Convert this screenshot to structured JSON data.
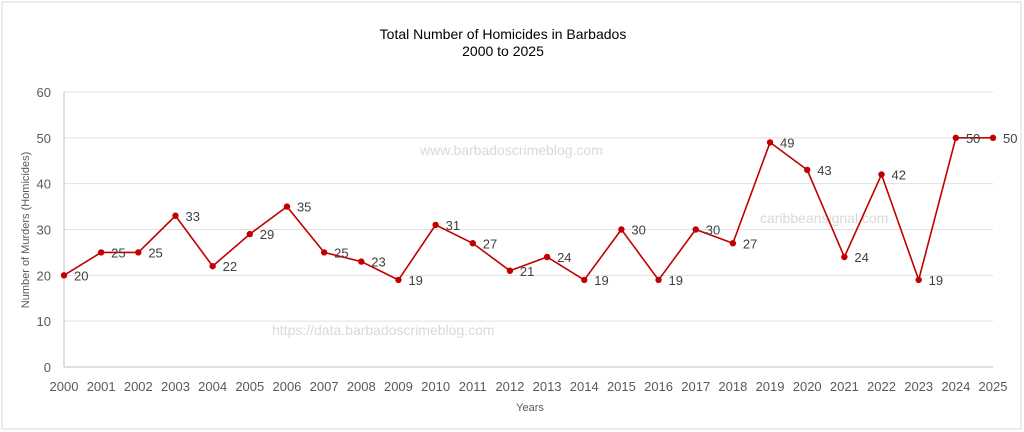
{
  "chart_data": {
    "type": "line",
    "title": "Total Number of Homicides in Barbados",
    "subtitle": "2000 to 2025",
    "xlabel": "Years",
    "ylabel": "Number of Murders (Homicides)",
    "ylim": [
      0,
      60
    ],
    "yticks": [
      0,
      10,
      20,
      30,
      40,
      50,
      60
    ],
    "grid": true,
    "legend": "none",
    "x": [
      "2000",
      "2001",
      "2002",
      "2003",
      "2004",
      "2005",
      "2006",
      "2007",
      "2008",
      "2009",
      "2010",
      "2011",
      "2012",
      "2013",
      "2014",
      "2015",
      "2016",
      "2017",
      "2018",
      "2019",
      "2020",
      "2021",
      "2022",
      "2023",
      "2024",
      "2025"
    ],
    "series": [
      {
        "name": "Homicides",
        "color": "#c00000",
        "values": [
          20,
          25,
          25,
          33,
          22,
          29,
          35,
          25,
          23,
          19,
          31,
          27,
          21,
          24,
          19,
          30,
          19,
          30,
          27,
          49,
          43,
          24,
          42,
          19,
          50,
          50
        ]
      }
    ]
  },
  "watermarks": [
    "www.barbadoscrimeblog.com",
    "caribbeansignal.com",
    "https://data.barbadoscrimeblog.com"
  ]
}
